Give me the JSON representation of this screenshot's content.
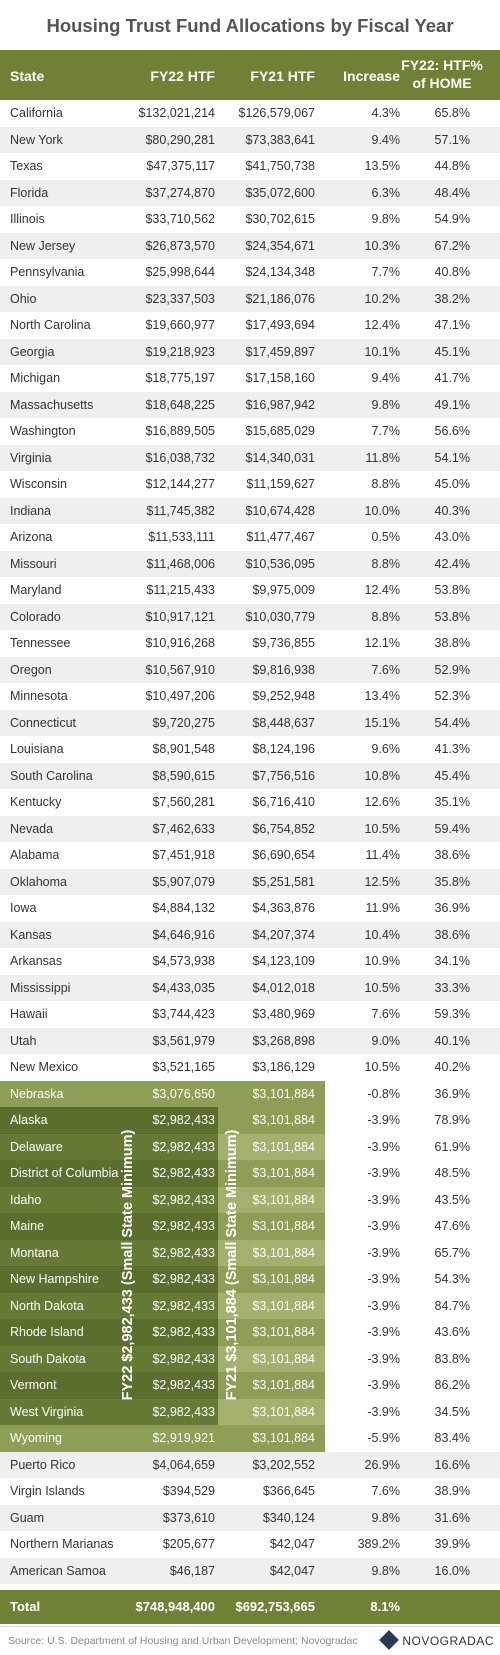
{
  "title": "Housing Trust Fund Allocations by Fiscal Year",
  "header": {
    "state": "State",
    "fy22": "FY22 HTF",
    "fy21": "FY21 HTF",
    "increase": "Increase",
    "pct_line1": "FY22: HTF%",
    "pct_line2": "of HOME"
  },
  "colors": {
    "header_green": "#6f8134",
    "min_dark": "#5b6e2e",
    "min_light": "#8d9e57",
    "min_edge": "#a4b06d",
    "alt_row": "#efefef"
  },
  "min_labels": {
    "fy22": "FY22 $2,982,433 (Small State Minimum)",
    "fy21": "FY21 $3,101,884 (Small State Minimum)"
  },
  "chart_data": {
    "type": "table",
    "columns": [
      "State",
      "FY22 HTF",
      "FY21 HTF",
      "Increase",
      "FY22: HTF% of HOME"
    ],
    "rows": [
      [
        "California",
        "$132,021,214",
        "$126,579,067",
        "4.3%",
        "65.8%"
      ],
      [
        "New York",
        "$80,290,281",
        "$73,383,641",
        "9.4%",
        "57.1%"
      ],
      [
        "Texas",
        "$47,375,117",
        "$41,750,738",
        "13.5%",
        "44.8%"
      ],
      [
        "Florida",
        "$37,274,870",
        "$35,072,600",
        "6.3%",
        "48.4%"
      ],
      [
        "Illinois",
        "$33,710,562",
        "$30,702,615",
        "9.8%",
        "54.9%"
      ],
      [
        "New Jersey",
        "$26,873,570",
        "$24,354,671",
        "10.3%",
        "67.2%"
      ],
      [
        "Pennsylvania",
        "$25,998,644",
        "$24,134,348",
        "7.7%",
        "40.8%"
      ],
      [
        "Ohio",
        "$23,337,503",
        "$21,186,076",
        "10.2%",
        "38.2%"
      ],
      [
        "North Carolina",
        "$19,660,977",
        "$17,493,694",
        "12.4%",
        "47.1%"
      ],
      [
        "Georgia",
        "$19,218,923",
        "$17,459,897",
        "10.1%",
        "45.1%"
      ],
      [
        "Michigan",
        "$18,775,197",
        "$17,158,160",
        "9.4%",
        "41.7%"
      ],
      [
        "Massachusetts",
        "$18,648,225",
        "$16,987,942",
        "9.8%",
        "49.1%"
      ],
      [
        "Washington",
        "$16,889,505",
        "$15,685,029",
        "7.7%",
        "56.6%"
      ],
      [
        "Virginia",
        "$16,038,732",
        "$14,340,031",
        "11.8%",
        "54.1%"
      ],
      [
        "Wisconsin",
        "$12,144,277",
        "$11,159,627",
        "8.8%",
        "45.0%"
      ],
      [
        "Indiana",
        "$11,745,382",
        "$10,674,428",
        "10.0%",
        "40.3%"
      ],
      [
        "Arizona",
        "$11,533,111",
        "$11,477,467",
        "0.5%",
        "43.0%"
      ],
      [
        "Missouri",
        "$11,468,006",
        "$10,536,095",
        "8.8%",
        "42.4%"
      ],
      [
        "Maryland",
        "$11,215,433",
        "$9,975,009",
        "12.4%",
        "53.8%"
      ],
      [
        "Colorado",
        "$10,917,121",
        "$10,030,779",
        "8.8%",
        "53.8%"
      ],
      [
        "Tennessee",
        "$10,916,268",
        "$9,736,855",
        "12.1%",
        "38.8%"
      ],
      [
        "Oregon",
        "$10,567,910",
        "$9,816,938",
        "7.6%",
        "52.9%"
      ],
      [
        "Minnesota",
        "$10,497,206",
        "$9,252,948",
        "13.4%",
        "52.3%"
      ],
      [
        "Connecticut",
        "$9,720,275",
        "$8,448,637",
        "15.1%",
        "54.4%"
      ],
      [
        "Louisiana",
        "$8,901,548",
        "$8,124,196",
        "9.6%",
        "41.3%"
      ],
      [
        "South Carolina",
        "$8,590,615",
        "$7,756,516",
        "10.8%",
        "45.4%"
      ],
      [
        "Kentucky",
        "$7,560,281",
        "$6,716,410",
        "12.6%",
        "35.1%"
      ],
      [
        "Nevada",
        "$7,462,633",
        "$6,754,852",
        "10.5%",
        "59.4%"
      ],
      [
        "Alabama",
        "$7,451,918",
        "$6,690,654",
        "11.4%",
        "38.6%"
      ],
      [
        "Oklahoma",
        "$5,907,079",
        "$5,251,581",
        "12.5%",
        "35.8%"
      ],
      [
        "Iowa",
        "$4,884,132",
        "$4,363,876",
        "11.9%",
        "36.9%"
      ],
      [
        "Kansas",
        "$4,646,916",
        "$4,207,374",
        "10.4%",
        "38.6%"
      ],
      [
        "Arkansas",
        "$4,573,938",
        "$4,123,109",
        "10.9%",
        "34.1%"
      ],
      [
        "Mississippi",
        "$4,433,035",
        "$4,012,018",
        "10.5%",
        "33.3%"
      ],
      [
        "Hawaii",
        "$3,744,423",
        "$3,480,969",
        "7.6%",
        "59.3%"
      ],
      [
        "Utah",
        "$3,561,979",
        "$3,268,898",
        "9.0%",
        "40.1%"
      ],
      [
        "New Mexico",
        "$3,521,165",
        "$3,186,129",
        "10.5%",
        "40.2%"
      ],
      [
        "Nebraska",
        "$3,076,650",
        "$3,101,884",
        "-0.8%",
        "36.9%"
      ],
      [
        "Alaska",
        "$2,982,433",
        "$3,101,884",
        "-3.9%",
        "78.9%"
      ],
      [
        "Delaware",
        "$2,982,433",
        "$3,101,884",
        "-3.9%",
        "61.9%"
      ],
      [
        "District of Columbia",
        "$2,982,433",
        "$3,101,884",
        "-3.9%",
        "48.5%"
      ],
      [
        "Idaho",
        "$2,982,433",
        "$3,101,884",
        "-3.9%",
        "43.5%"
      ],
      [
        "Maine",
        "$2,982,433",
        "$3,101,884",
        "-3.9%",
        "47.6%"
      ],
      [
        "Montana",
        "$2,982,433",
        "$3,101,884",
        "-3.9%",
        "65.7%"
      ],
      [
        "New Hampshire",
        "$2,982,433",
        "$3,101,884",
        "-3.9%",
        "54.3%"
      ],
      [
        "North Dakota",
        "$2,982,433",
        "$3,101,884",
        "-3.9%",
        "84.7%"
      ],
      [
        "Rhode Island",
        "$2,982,433",
        "$3,101,884",
        "-3.9%",
        "43.6%"
      ],
      [
        "South Dakota",
        "$2,982,433",
        "$3,101,884",
        "-3.9%",
        "83.8%"
      ],
      [
        "Vermont",
        "$2,982,433",
        "$3,101,884",
        "-3.9%",
        "86.2%"
      ],
      [
        "West Virginia",
        "$2,982,433",
        "$3,101,884",
        "-3.9%",
        "34.5%"
      ],
      [
        "Wyoming",
        "$2,919,921",
        "$3,101,884",
        "-5.9%",
        "83.4%"
      ],
      [
        "Puerto Rico",
        "$4,064,659",
        "$3,202,552",
        "26.9%",
        "16.6%"
      ],
      [
        "Virgin Islands",
        "$394,529",
        "$366,645",
        "7.6%",
        "38.9%"
      ],
      [
        "Guam",
        "$373,610",
        "$340,124",
        "9.8%",
        "31.6%"
      ],
      [
        "Northern Marianas",
        "$205,677",
        "$42,047",
        "389.2%",
        "39.9%"
      ],
      [
        "American Samoa",
        "$46,187",
        "$42,047",
        "9.8%",
        "16.0%"
      ]
    ],
    "total": [
      "Total",
      "$748,948,400",
      "$692,753,665",
      "8.1%",
      ""
    ]
  },
  "footer": {
    "source": "Source: U.S. Department of Housing and Urban Development; Novogradac",
    "logo": "NOVOGRADAC"
  }
}
